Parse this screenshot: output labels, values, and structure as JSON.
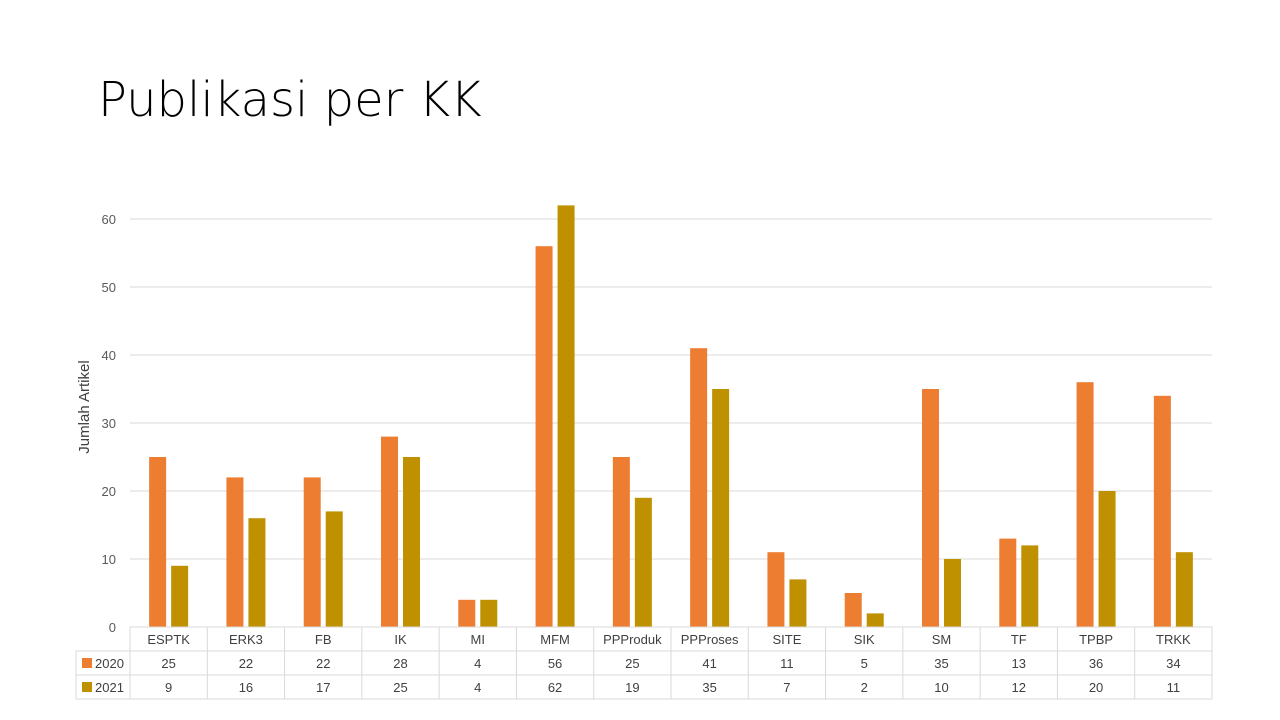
{
  "title": "Publikasi per KK",
  "chart_data": {
    "type": "bar",
    "categories": [
      "ESPTK",
      "ERK3",
      "FB",
      "IK",
      "MI",
      "MFM",
      "PPProduk",
      "PPProses",
      "SITE",
      "SIK",
      "SM",
      "TF",
      "TPBP",
      "TRKK"
    ],
    "series": [
      {
        "name": "2020",
        "color": "#ED7D31",
        "values": [
          25,
          22,
          22,
          28,
          4,
          56,
          25,
          41,
          11,
          5,
          35,
          13,
          36,
          34
        ]
      },
      {
        "name": "2021",
        "color": "#BF9000",
        "values": [
          9,
          16,
          17,
          25,
          4,
          62,
          19,
          35,
          7,
          2,
          10,
          12,
          20,
          11
        ]
      }
    ],
    "ylabel": "Jumlah Artikel",
    "ylim": [
      0,
      60
    ],
    "yticks": [
      0,
      10,
      20,
      30,
      40,
      50,
      60
    ],
    "grid": true,
    "legend": "data-table"
  }
}
